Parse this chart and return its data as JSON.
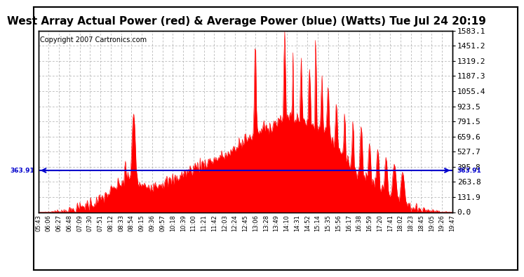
{
  "title": "West Array Actual Power (red) & Average Power (blue) (Watts) Tue Jul 24 20:19",
  "copyright": "Copyright 2007 Cartronics.com",
  "avg_power": 363.91,
  "ymax": 1583.1,
  "yticks": [
    0.0,
    131.9,
    263.8,
    395.8,
    527.7,
    659.6,
    791.5,
    923.5,
    1055.4,
    1187.3,
    1319.2,
    1451.2,
    1583.1
  ],
  "ytick_labels_right": [
    "0.0",
    "131.9",
    "263.8",
    "395.8",
    "527.7",
    "659.6",
    "791.5",
    "923.5",
    "1055.4",
    "1187.3",
    "1319.2",
    "1451.2",
    "1583.1"
  ],
  "xtick_labels": [
    "05:43",
    "06:06",
    "06:27",
    "06:48",
    "07:09",
    "07:30",
    "07:51",
    "08:12",
    "08:33",
    "08:54",
    "09:15",
    "09:36",
    "09:57",
    "10:18",
    "10:39",
    "11:00",
    "11:21",
    "11:42",
    "12:03",
    "12:24",
    "12:45",
    "13:06",
    "13:28",
    "13:49",
    "14:10",
    "14:31",
    "14:52",
    "15:14",
    "15:35",
    "15:56",
    "16:17",
    "16:38",
    "16:59",
    "17:20",
    "17:41",
    "18:02",
    "18:23",
    "18:45",
    "19:05",
    "19:26",
    "19:47"
  ],
  "fill_color": "#FF0000",
  "line_color": "#0000CC",
  "bg_color": "#FFFFFF",
  "plot_bg_color": "#FFFFFF",
  "grid_color": "#AAAAAA",
  "border_color": "#000000",
  "title_fontsize": 11,
  "copyright_fontsize": 7,
  "ytick_fontsize": 8,
  "xtick_fontsize": 6
}
